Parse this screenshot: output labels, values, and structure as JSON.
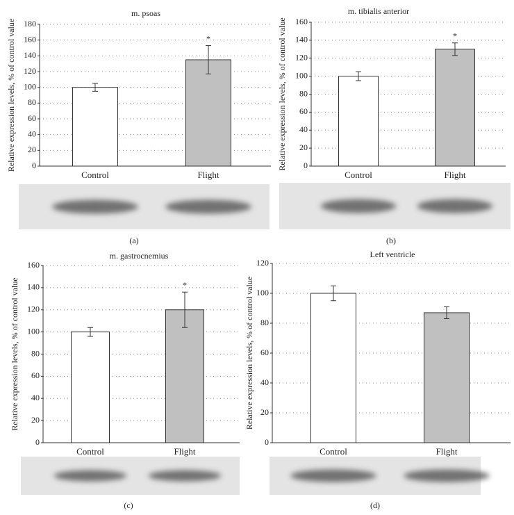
{
  "chart_data": [
    {
      "type": "bar",
      "title": "m. psoas",
      "ylabel": "Relative expression levels, % of control value",
      "panel": "(a)",
      "categories": [
        "Control",
        "Flight"
      ],
      "values": [
        100,
        135
      ],
      "errors": [
        5,
        18
      ],
      "colors": [
        "#ffffff",
        "#c0c0c0"
      ],
      "annotations": [
        null,
        "*"
      ],
      "ylim": [
        0,
        180
      ],
      "yticks": [
        0,
        20,
        40,
        60,
        80,
        100,
        120,
        140,
        160,
        180
      ],
      "grid": true
    },
    {
      "type": "bar",
      "title": "m. tibialis anterior",
      "ylabel": "Relative expression levels, % of control value",
      "panel": "(b)",
      "categories": [
        "Control",
        "Flight"
      ],
      "values": [
        100,
        130
      ],
      "errors": [
        5,
        7
      ],
      "colors": [
        "#ffffff",
        "#c0c0c0"
      ],
      "annotations": [
        null,
        "*"
      ],
      "ylim": [
        0,
        160
      ],
      "yticks": [
        0,
        20,
        40,
        60,
        80,
        100,
        120,
        140,
        160
      ],
      "grid": true
    },
    {
      "type": "bar",
      "title": "m. gastrocnemius",
      "ylabel": "Relative expression levels, % of control value",
      "panel": "(c)",
      "categories": [
        "Control",
        "Flight"
      ],
      "values": [
        100,
        120
      ],
      "errors": [
        4,
        16
      ],
      "colors": [
        "#ffffff",
        "#c0c0c0"
      ],
      "annotations": [
        null,
        "*"
      ],
      "ylim": [
        0,
        160
      ],
      "yticks": [
        0,
        20,
        40,
        60,
        80,
        100,
        120,
        140,
        160
      ],
      "grid": true
    },
    {
      "type": "bar",
      "title": "Left ventricle",
      "ylabel": "Relative expression levels, % of control value",
      "panel": "(d)",
      "categories": [
        "Control",
        "Flight"
      ],
      "values": [
        100,
        87
      ],
      "errors": [
        5,
        4
      ],
      "colors": [
        "#ffffff",
        "#c0c0c0"
      ],
      "annotations": [
        null,
        null
      ],
      "ylim": [
        0,
        120
      ],
      "yticks": [
        0,
        20,
        40,
        60,
        80,
        100,
        120
      ],
      "grid": true
    }
  ]
}
